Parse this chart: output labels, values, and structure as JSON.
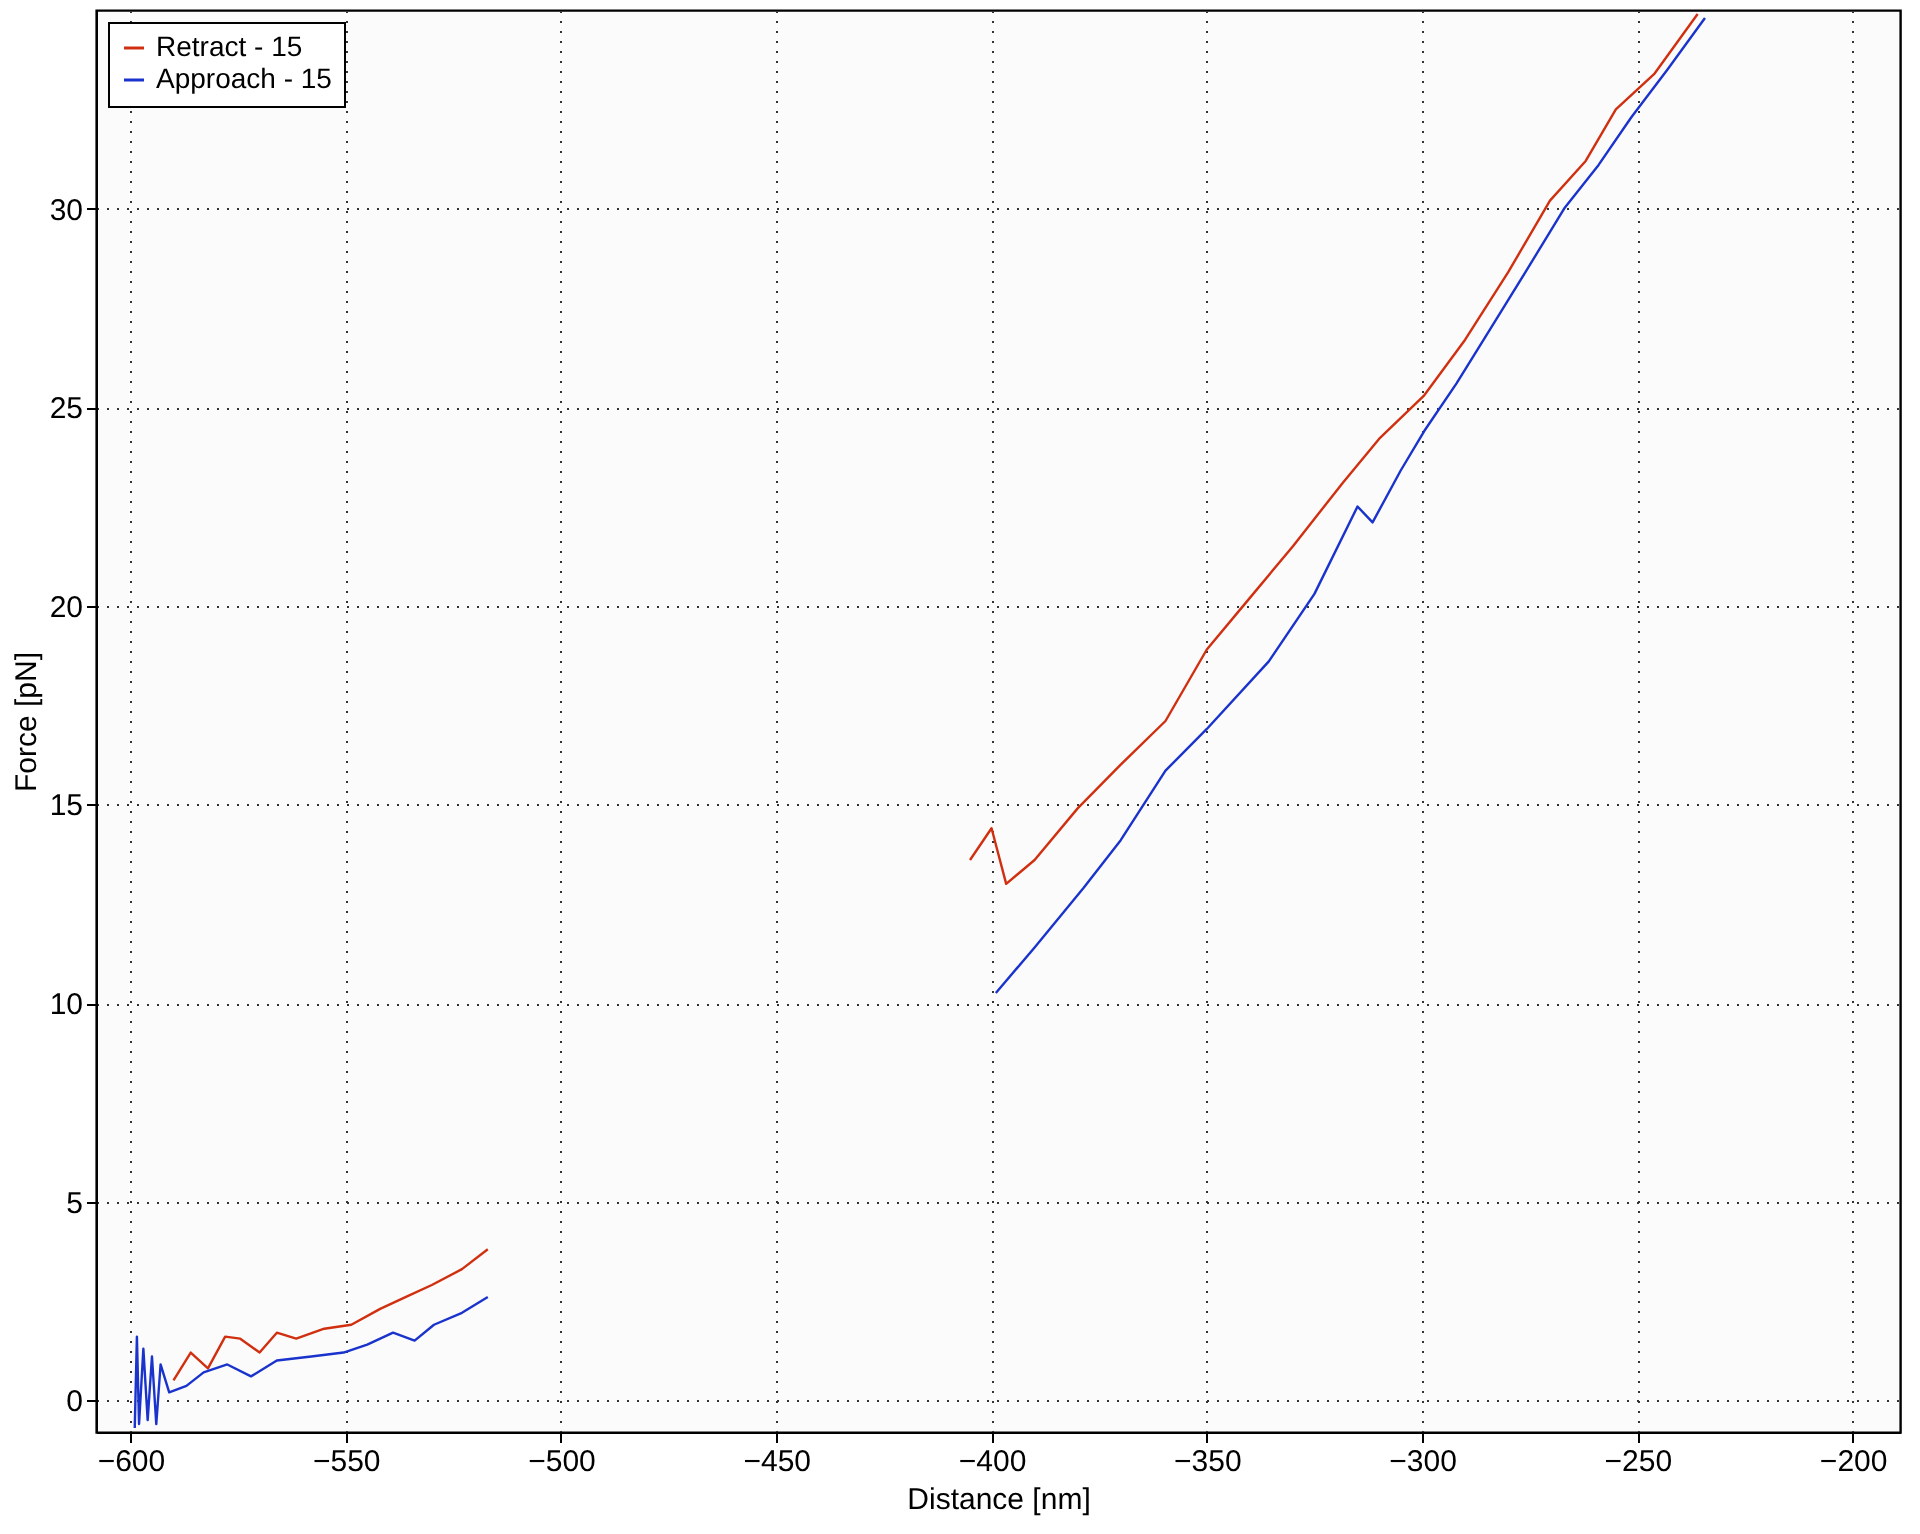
{
  "chart_data": {
    "type": "line",
    "xlabel": "Distance [nm]",
    "ylabel": "Force [pN]",
    "xlim": [
      -608,
      -189
    ],
    "ylim": [
      -0.8,
      35
    ],
    "xticks": [
      -600,
      -550,
      -500,
      -450,
      -400,
      -350,
      -300,
      -250,
      -200
    ],
    "yticks": [
      0,
      5,
      10,
      15,
      20,
      25,
      30
    ],
    "grid": true,
    "legend": "top left",
    "line_style": "solid",
    "marker": "none",
    "series": [
      {
        "name": "Retract - 15",
        "color": "#d03010",
        "x": [
          -590,
          -586,
          -582,
          -578,
          -574.5,
          -570,
          -566,
          -561.5,
          -555,
          -548.7,
          -542,
          -536,
          -530,
          -523,
          -517,
          -411,
          -405,
          -400,
          -396.6,
          -390,
          -380,
          -370,
          -359.6,
          -350,
          -340,
          -330,
          -318.4,
          -310,
          -299.5,
          -290,
          -280,
          -270.3,
          -262,
          -255,
          -246,
          -236
        ],
        "values": [
          0.5,
          1.2,
          0.8,
          1.6,
          1.55,
          1.2,
          1.7,
          1.55,
          1.8,
          1.9,
          2.3,
          2.6,
          2.9,
          3.3,
          3.8,
          null,
          13.6,
          14.4,
          13.0,
          13.6,
          14.9,
          16.0,
          17.1,
          18.9,
          20.2,
          21.5,
          23.1,
          24.2,
          25.3,
          26.7,
          28.4,
          30.2,
          31.2,
          32.5,
          33.4,
          34.9
        ]
      },
      {
        "name": "Approach - 15",
        "color": "#1a33cc",
        "x": [
          -599,
          -598.5,
          -598,
          -597,
          -596,
          -595,
          -594,
          -593,
          -591,
          -587,
          -583,
          -577.5,
          -572,
          -566,
          -558,
          -550.5,
          -545,
          -539,
          -534,
          -529.5,
          -523,
          -517,
          -403,
          -399,
          -390,
          -378.6,
          -370,
          -359.6,
          -350,
          -335.6,
          -325,
          -315,
          -311.5,
          -305,
          -299.5,
          -292,
          -284,
          -276,
          -267,
          -259,
          -251.4,
          -243,
          -234.3
        ],
        "values": [
          -0.7,
          1.6,
          -0.6,
          1.3,
          -0.5,
          1.1,
          -0.6,
          0.9,
          0.2,
          0.36,
          0.7,
          0.9,
          0.6,
          1.0,
          1.1,
          1.2,
          1.4,
          1.7,
          1.5,
          1.9,
          2.2,
          2.6,
          null,
          10.25,
          11.4,
          12.9,
          14.1,
          15.85,
          16.9,
          18.6,
          20.3,
          22.5,
          22.1,
          23.4,
          24.4,
          25.6,
          27.0,
          28.4,
          30.0,
          31.1,
          32.3,
          33.5,
          34.8
        ]
      }
    ]
  }
}
